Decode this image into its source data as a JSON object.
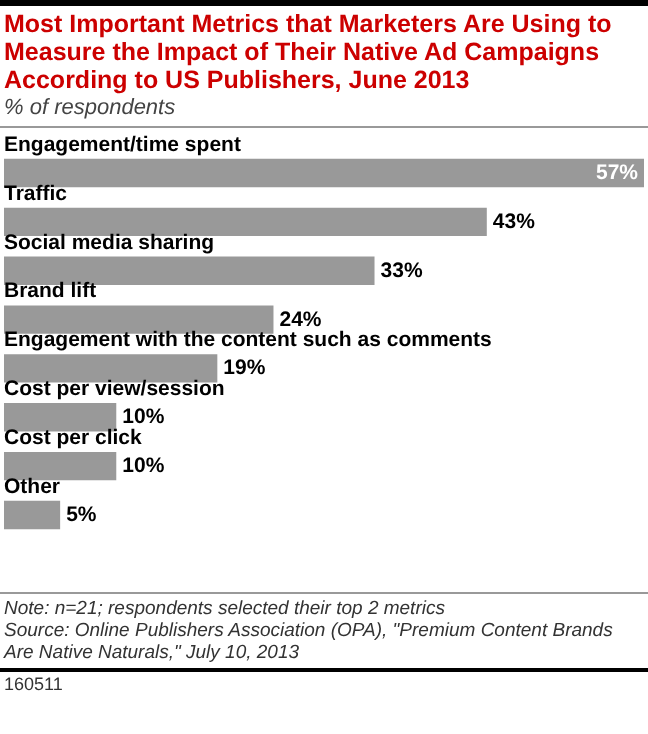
{
  "chart_data": {
    "type": "bar",
    "orientation": "horizontal",
    "title": "Most Important Metrics that Marketers Are Using to Measure the Impact of Their Native Ad Campaigns According to US Publishers, June 2013",
    "subtitle": "% of respondents",
    "categories": [
      "Engagement/time spent",
      "Traffic",
      "Social media sharing",
      "Brand lift",
      "Engagement with the content such as comments",
      "Cost per view/session",
      "Cost per click",
      "Other"
    ],
    "values": [
      57,
      43,
      33,
      24,
      19,
      10,
      10,
      5
    ],
    "value_labels": [
      "57%",
      "43%",
      "33%",
      "24%",
      "19%",
      "10%",
      "10%",
      "5%"
    ],
    "color": "#999999",
    "annotations": [
      "Note: n=21; respondents selected their top 2 metrics",
      "Source: Online Publishers Association (OPA), \"Premium Content Brands Are Native Naturals,\" July 10, 2013",
      "160511"
    ]
  }
}
